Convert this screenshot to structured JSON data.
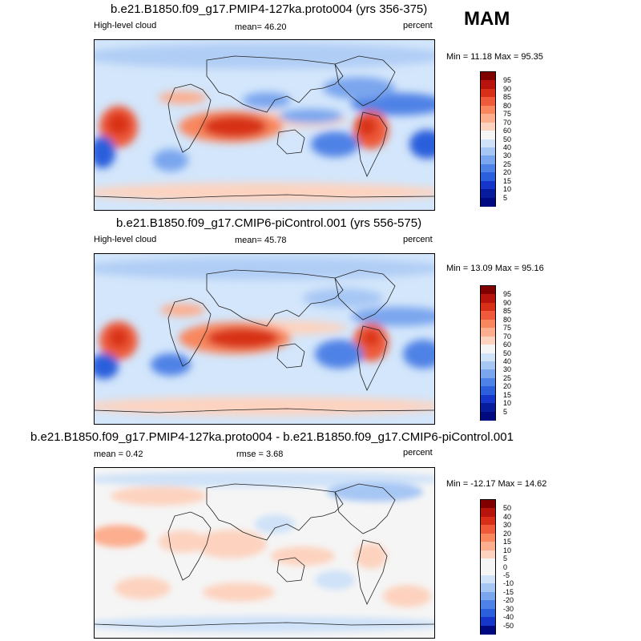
{
  "season": "MAM",
  "panels": [
    {
      "title": "b.e21.B1850.f09_g17.PMIP4-127ka.proto004 (yrs 356-375)",
      "left_label": "High-level cloud",
      "center_label": "mean=  46.20",
      "right_label": "percent",
      "minmax": "Min =  11.18 Max =  95.35"
    },
    {
      "title": "b.e21.B1850.f09_g17.CMIP6-piControl.001 (yrs 556-575)",
      "left_label": "High-level cloud",
      "center_label": "mean=  45.78",
      "right_label": "percent",
      "minmax": "Min =  13.09 Max =  95.16"
    },
    {
      "title": "b.e21.B1850.f09_g17.PMIP4-127ka.proto004 - b.e21.B1850.f09_g17.CMIP6-piControl.001",
      "left_label": "mean =   0.42",
      "center_label": "rmse =   3.68",
      "right_label": "percent",
      "minmax": "Min = -12.17 Max =  14.62"
    }
  ],
  "colorbars": {
    "absolute": {
      "labels": [
        "95",
        "90",
        "85",
        "80",
        "75",
        "70",
        "60",
        "50",
        "40",
        "30",
        "25",
        "20",
        "15",
        "10",
        "5"
      ],
      "colors": [
        "#800000",
        "#b8140e",
        "#d83018",
        "#ee5a3a",
        "#f8875f",
        "#fcae8f",
        "#fdd3bf",
        "#f5f5f5",
        "#cfe2f8",
        "#a6c6f4",
        "#7aa6ee",
        "#4f82e6",
        "#2c5fdc",
        "#1536c8",
        "#061c9c",
        "#000a80"
      ]
    },
    "difference": {
      "labels": [
        "50",
        "40",
        "30",
        "20",
        "15",
        "10",
        "5",
        "0",
        "-5",
        "-10",
        "-15",
        "-20",
        "-30",
        "-40",
        "-50"
      ],
      "colors": [
        "#800000",
        "#b8140e",
        "#d83018",
        "#ee5a3a",
        "#f8875f",
        "#fcae8f",
        "#fdd3bf",
        "#f5f5f5",
        "#f5f5f5",
        "#cfe2f8",
        "#a6c6f4",
        "#7aa6ee",
        "#4f82e6",
        "#2c5fdc",
        "#1536c8",
        "#000a80"
      ]
    }
  }
}
